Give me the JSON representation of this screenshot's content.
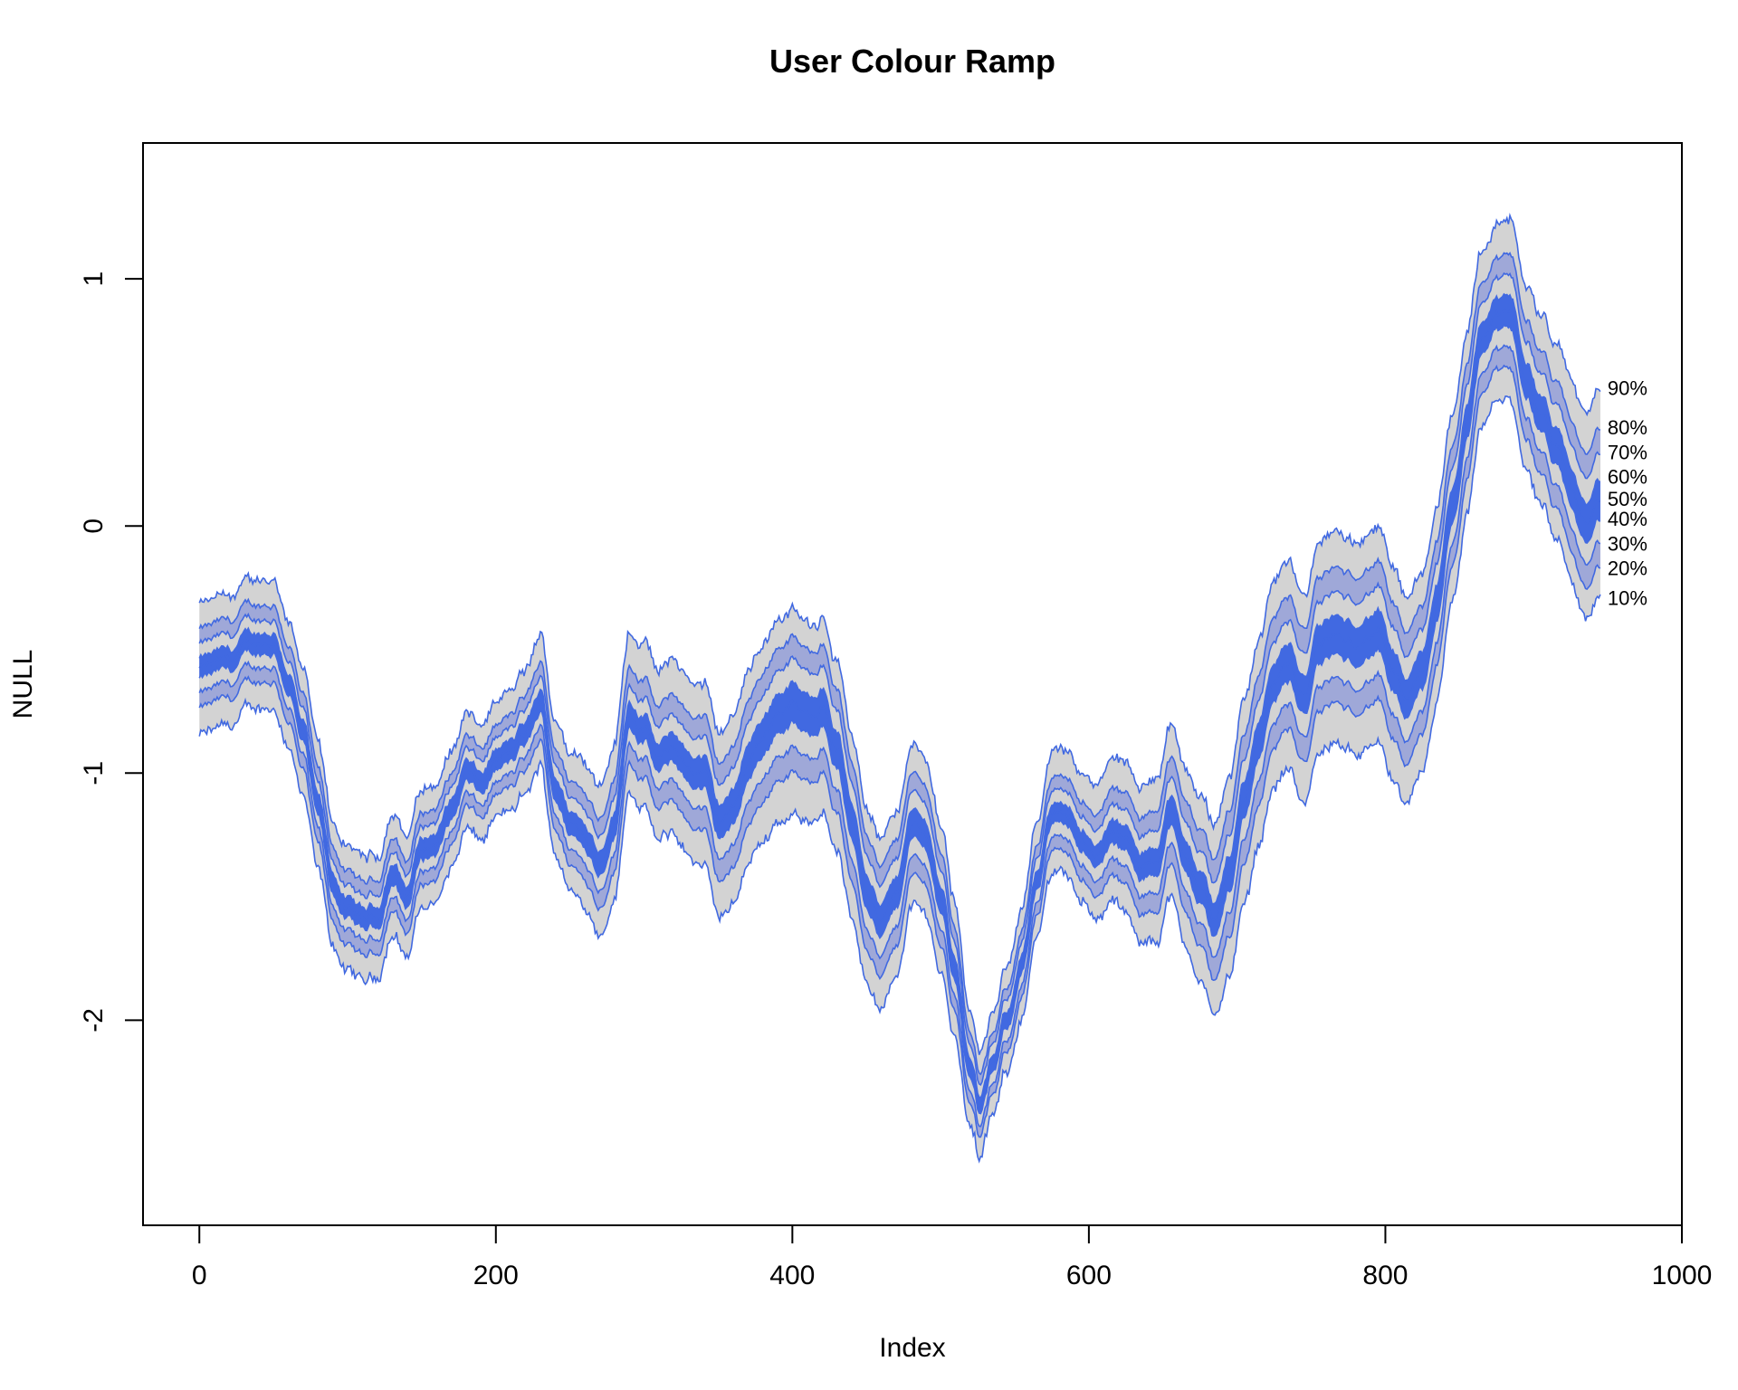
{
  "chart_data": {
    "type": "area",
    "title": "User Colour Ramp",
    "xlabel": "Index",
    "ylabel": "NULL",
    "xlim": [
      -38,
      1000
    ],
    "ylim": [
      -2.83,
      1.55
    ],
    "x_ticks": [
      0,
      200,
      400,
      600,
      800,
      1000
    ],
    "y_ticks": [
      -2,
      -1,
      0,
      1
    ],
    "grid": false,
    "legend": "none",
    "n_points": 946,
    "band_colors": [
      "#d3d3d3",
      "#9fa8d8",
      "#4169e1"
    ],
    "line_color": "#4169e1",
    "percentile_labels": [
      {
        "label": "90%",
        "value": 0.56
      },
      {
        "label": "80%",
        "value": 0.4
      },
      {
        "label": "70%",
        "value": 0.3
      },
      {
        "label": "60%",
        "value": 0.2
      },
      {
        "label": "50%",
        "value": 0.11
      },
      {
        "label": "40%",
        "value": 0.03
      },
      {
        "label": "30%",
        "value": -0.07
      },
      {
        "label": "20%",
        "value": -0.17
      },
      {
        "label": "10%",
        "value": -0.29
      }
    ],
    "median_anchors": [
      [
        0,
        -0.58
      ],
      [
        20,
        -0.55
      ],
      [
        35,
        -0.48
      ],
      [
        50,
        -0.47
      ],
      [
        60,
        -0.62
      ],
      [
        70,
        -0.85
      ],
      [
        80,
        -1.15
      ],
      [
        90,
        -1.45
      ],
      [
        100,
        -1.56
      ],
      [
        110,
        -1.6
      ],
      [
        120,
        -1.58
      ],
      [
        130,
        -1.4
      ],
      [
        140,
        -1.5
      ],
      [
        150,
        -1.3
      ],
      [
        160,
        -1.28
      ],
      [
        170,
        -1.15
      ],
      [
        180,
        -1.0
      ],
      [
        190,
        -1.05
      ],
      [
        200,
        -0.95
      ],
      [
        210,
        -0.92
      ],
      [
        220,
        -0.85
      ],
      [
        230,
        -0.72
      ],
      [
        240,
        -1.05
      ],
      [
        250,
        -1.2
      ],
      [
        260,
        -1.25
      ],
      [
        270,
        -1.35
      ],
      [
        280,
        -1.2
      ],
      [
        290,
        -0.75
      ],
      [
        300,
        -0.82
      ],
      [
        310,
        -0.95
      ],
      [
        320,
        -0.9
      ],
      [
        330,
        -0.98
      ],
      [
        340,
        -1.0
      ],
      [
        350,
        -1.2
      ],
      [
        360,
        -1.15
      ],
      [
        370,
        -0.95
      ],
      [
        380,
        -0.85
      ],
      [
        390,
        -0.75
      ],
      [
        400,
        -0.72
      ],
      [
        410,
        -0.78
      ],
      [
        420,
        -0.72
      ],
      [
        430,
        -0.9
      ],
      [
        440,
        -1.2
      ],
      [
        450,
        -1.45
      ],
      [
        460,
        -1.6
      ],
      [
        470,
        -1.5
      ],
      [
        480,
        -1.2
      ],
      [
        490,
        -1.25
      ],
      [
        500,
        -1.5
      ],
      [
        510,
        -1.8
      ],
      [
        520,
        -2.2
      ],
      [
        527,
        -2.35
      ],
      [
        535,
        -2.2
      ],
      [
        545,
        -2.0
      ],
      [
        555,
        -1.75
      ],
      [
        565,
        -1.45
      ],
      [
        575,
        -1.2
      ],
      [
        585,
        -1.15
      ],
      [
        595,
        -1.25
      ],
      [
        605,
        -1.35
      ],
      [
        615,
        -1.25
      ],
      [
        625,
        -1.28
      ],
      [
        635,
        -1.4
      ],
      [
        645,
        -1.35
      ],
      [
        655,
        -1.15
      ],
      [
        665,
        -1.35
      ],
      [
        675,
        -1.45
      ],
      [
        685,
        -1.6
      ],
      [
        695,
        -1.4
      ],
      [
        705,
        -1.1
      ],
      [
        715,
        -0.85
      ],
      [
        725,
        -0.6
      ],
      [
        735,
        -0.55
      ],
      [
        745,
        -0.7
      ],
      [
        755,
        -0.5
      ],
      [
        765,
        -0.45
      ],
      [
        775,
        -0.48
      ],
      [
        785,
        -0.45
      ],
      [
        795,
        -0.42
      ],
      [
        805,
        -0.6
      ],
      [
        815,
        -0.72
      ],
      [
        825,
        -0.6
      ],
      [
        835,
        -0.3
      ],
      [
        845,
        0.05
      ],
      [
        855,
        0.4
      ],
      [
        865,
        0.75
      ],
      [
        875,
        0.85
      ],
      [
        885,
        0.85
      ],
      [
        895,
        0.6
      ],
      [
        905,
        0.45
      ],
      [
        915,
        0.3
      ],
      [
        925,
        0.15
      ],
      [
        935,
        0.0
      ],
      [
        945,
        0.1
      ]
    ],
    "band_offsets_anchors": [
      [
        0,
        [
          -0.27,
          -0.16,
          -0.1,
          -0.04,
          0.0,
          0.04,
          0.1,
          0.16,
          0.26
        ]
      ],
      [
        100,
        [
          -0.25,
          -0.15,
          -0.09,
          -0.04,
          0.0,
          0.04,
          0.09,
          0.15,
          0.25
        ]
      ],
      [
        200,
        [
          -0.23,
          -0.14,
          -0.09,
          -0.04,
          0.0,
          0.04,
          0.09,
          0.14,
          0.23
        ]
      ],
      [
        300,
        [
          -0.32,
          -0.2,
          -0.12,
          -0.05,
          0.0,
          0.05,
          0.12,
          0.2,
          0.35
        ]
      ],
      [
        400,
        [
          -0.45,
          -0.28,
          -0.18,
          -0.08,
          0.0,
          0.08,
          0.18,
          0.27,
          0.38
        ]
      ],
      [
        500,
        [
          -0.3,
          -0.19,
          -0.12,
          -0.05,
          0.0,
          0.05,
          0.12,
          0.19,
          0.3
        ]
      ],
      [
        530,
        [
          -0.2,
          -0.12,
          -0.08,
          -0.03,
          0.0,
          0.03,
          0.08,
          0.12,
          0.2
        ]
      ],
      [
        600,
        [
          -0.25,
          -0.16,
          -0.1,
          -0.04,
          0.0,
          0.04,
          0.1,
          0.16,
          0.28
        ]
      ],
      [
        700,
        [
          -0.42,
          -0.26,
          -0.16,
          -0.07,
          0.0,
          0.07,
          0.16,
          0.26,
          0.4
        ]
      ],
      [
        800,
        [
          -0.45,
          -0.28,
          -0.18,
          -0.08,
          0.0,
          0.08,
          0.18,
          0.28,
          0.42
        ]
      ],
      [
        870,
        [
          -0.35,
          -0.22,
          -0.14,
          -0.06,
          0.0,
          0.06,
          0.14,
          0.22,
          0.35
        ]
      ],
      [
        945,
        [
          -0.39,
          -0.27,
          -0.17,
          -0.08,
          0.0,
          0.08,
          0.19,
          0.29,
          0.46
        ]
      ]
    ]
  }
}
